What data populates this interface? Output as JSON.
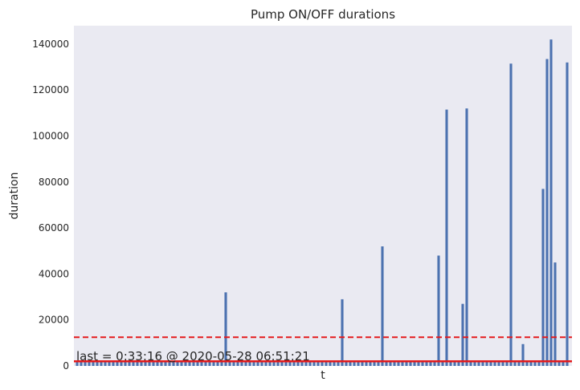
{
  "chart_data": {
    "type": "bar",
    "title": "Pump ON/OFF durations",
    "xlabel": "t",
    "ylabel": "duration",
    "ylim": [
      0,
      148000
    ],
    "yticks": [
      0,
      20000,
      40000,
      60000,
      80000,
      100000,
      120000,
      140000
    ],
    "xticks_visible": false,
    "grid": false,
    "bar_color": "#4c72b0",
    "background_color": "#eaeaf2",
    "values": [
      1990,
      1990,
      1990,
      1990,
      1990,
      1990,
      1990,
      1990,
      1990,
      1990,
      1990,
      1990,
      1990,
      1990,
      1990,
      1990,
      1990,
      1990,
      1990,
      1990,
      1990,
      1990,
      1990,
      1990,
      1990,
      1990,
      1990,
      1990,
      1990,
      1990,
      1990,
      1990,
      1990,
      1990,
      1990,
      1990,
      1990,
      32000,
      1990,
      1990,
      1990,
      1990,
      1990,
      1990,
      1990,
      1990,
      1990,
      1990,
      1990,
      1990,
      1990,
      1990,
      1990,
      1990,
      1990,
      1990,
      1990,
      1990,
      1990,
      1990,
      1990,
      1990,
      1990,
      1990,
      1990,
      1990,
      29000,
      1990,
      1990,
      1990,
      1990,
      1990,
      1990,
      1990,
      1990,
      1990,
      52000,
      1990,
      1990,
      1990,
      1990,
      1990,
      1990,
      1990,
      1990,
      1990,
      1990,
      1990,
      1990,
      1990,
      48000,
      1990,
      111500,
      1990,
      1990,
      1990,
      27000,
      112000,
      1990,
      1990,
      1990,
      1990,
      1990,
      1990,
      1990,
      1990,
      1990,
      1990,
      131500,
      1990,
      1990,
      9500,
      1990,
      1990,
      1990,
      1990,
      77000,
      133500,
      142000,
      45000,
      1990,
      1990,
      132000
    ],
    "reference_lines": [
      {
        "value": 12500,
        "color": "#e41a1c",
        "style": "dashed"
      },
      {
        "value": 1990,
        "color": "#e41a1c",
        "style": "solid"
      }
    ],
    "annotation": "last = 0:33:16 @  2020-05-28 06:51:21"
  }
}
